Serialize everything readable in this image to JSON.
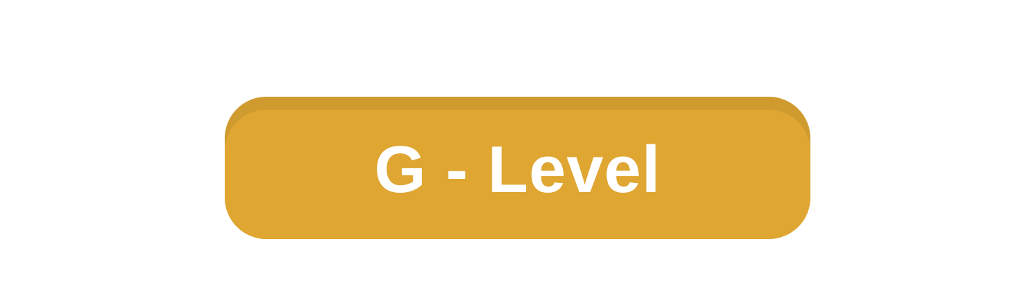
{
  "level_button": {
    "label": "G - Level",
    "colors": {
      "face": "#dfa632",
      "top_edge": "#cf9b2f",
      "text": "#ffffff",
      "background": "#ffffff"
    }
  }
}
